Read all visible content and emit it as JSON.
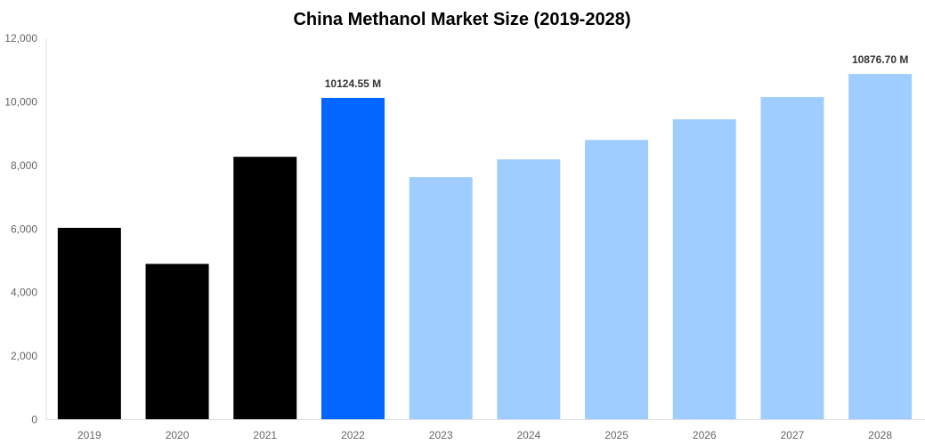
{
  "chart_data": {
    "type": "bar",
    "title": "China Methanol Market Size (2019-2028)",
    "xlabel": "",
    "ylabel": "",
    "categories": [
      "2019",
      "2020",
      "2021",
      "2022",
      "2023",
      "2024",
      "2025",
      "2026",
      "2027",
      "2028"
    ],
    "values": [
      6035,
      4900,
      8270,
      10124.55,
      7630,
      8190,
      8800,
      9450,
      10150,
      10876.7
    ],
    "bar_colors": [
      "#000000",
      "#000000",
      "#000000",
      "#0066ff",
      "#a0cdff",
      "#a0cdff",
      "#a0cdff",
      "#a0cdff",
      "#a0cdff",
      "#a0cdff"
    ],
    "data_labels": {
      "3": "10124.55 M",
      "9": "10876.70 M"
    },
    "ylim": [
      0,
      12000
    ],
    "yticks": [
      "0",
      "2,000",
      "4,000",
      "6,000",
      "8,000",
      "10,000",
      "12,000"
    ],
    "grid": false,
    "legend": "none"
  }
}
